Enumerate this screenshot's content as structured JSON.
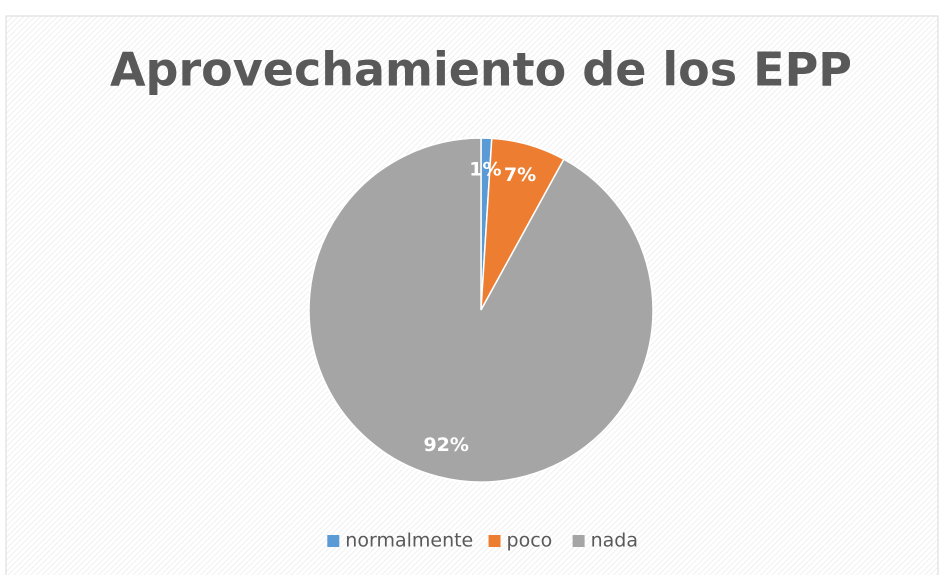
{
  "chart_data": {
    "type": "pie",
    "title": "Aprovechamiento de los EPP",
    "categories": [
      "normalmente",
      "poco",
      "nada"
    ],
    "values": [
      1,
      7,
      92
    ],
    "value_labels": [
      "1%",
      "7%",
      "92%"
    ],
    "colors": [
      "#5b9bd5",
      "#ed7d31",
      "#a5a5a5"
    ],
    "legend": "bottom"
  }
}
